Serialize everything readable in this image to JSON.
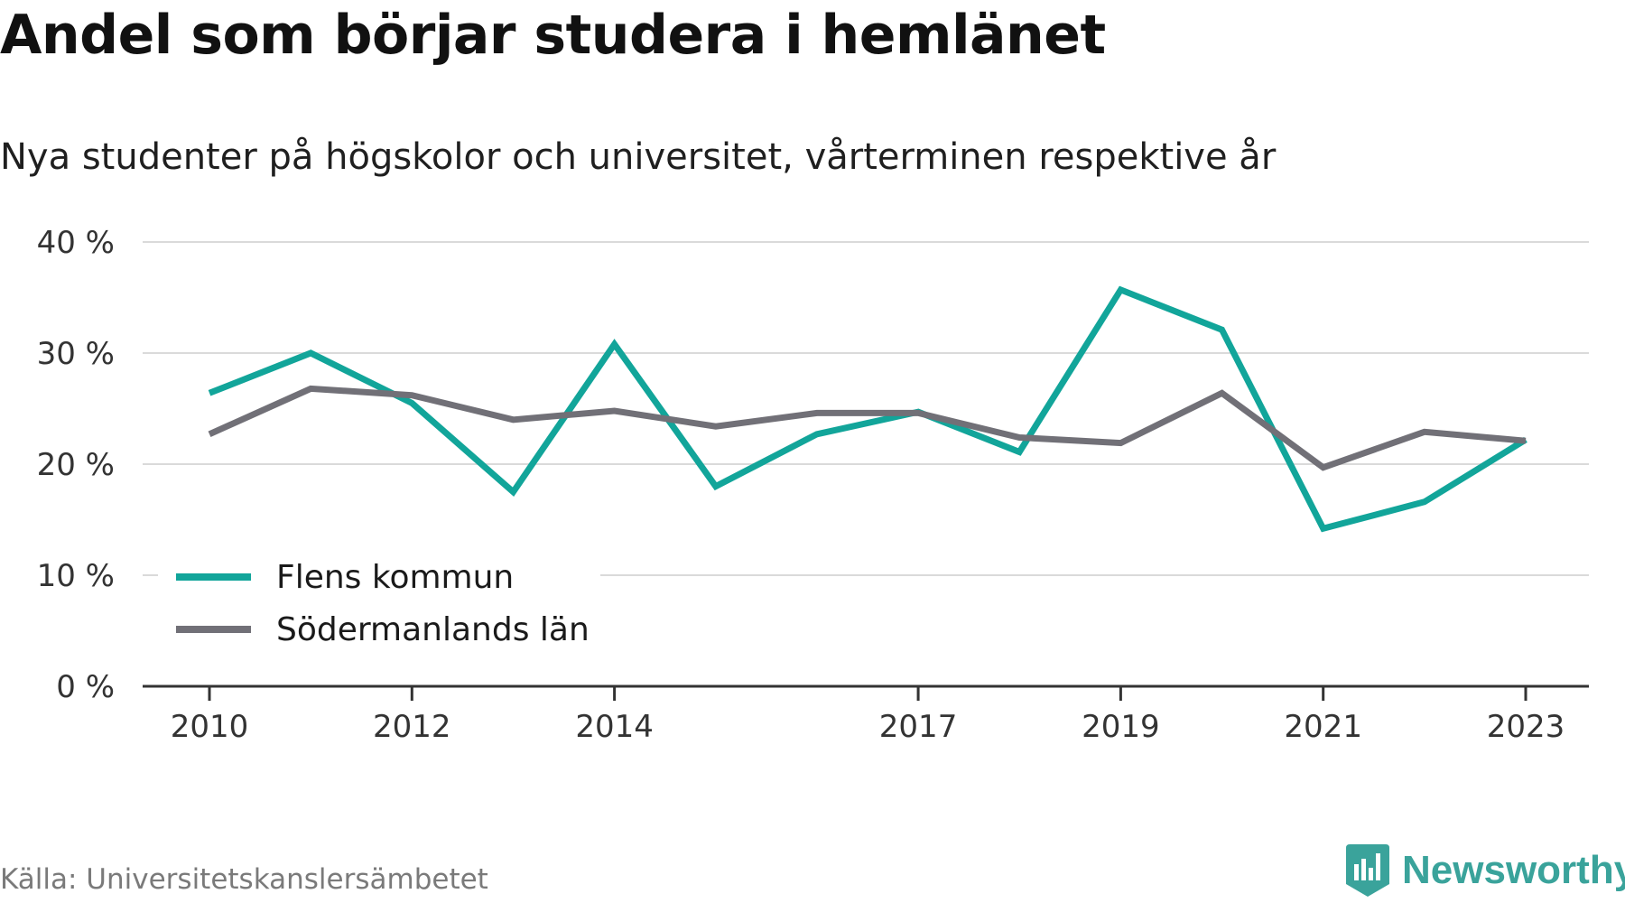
{
  "title": "Andel som börjar studera i hemlänet",
  "subtitle": "Nya studenter på högskolor och universitet, vårterminen respektive år",
  "source": "Källa: Universitetskanslersämbetet",
  "brand": {
    "name": "Newsworthy",
    "icon": "newsworthy-logo-icon",
    "color": "#3aa39b"
  },
  "chart_data": {
    "type": "line",
    "x": [
      2010,
      2011,
      2012,
      2013,
      2014,
      2015,
      2016,
      2017,
      2018,
      2019,
      2020,
      2021,
      2022,
      2023
    ],
    "x_tick_labels": [
      "2010",
      "2012",
      "2014",
      "2017",
      "2019",
      "2021",
      "2023"
    ],
    "y_tick_labels": [
      "0 %",
      "10 %",
      "20 %",
      "30 %",
      "40 %"
    ],
    "ylim": [
      0,
      40
    ],
    "grid": true,
    "legend_position": "bottom-left",
    "series": [
      {
        "name": "Flens kommun",
        "color": "#12a59a",
        "values": [
          26.4,
          30.0,
          25.5,
          17.5,
          30.8,
          18.0,
          22.7,
          24.7,
          21.1,
          35.7,
          32.1,
          14.2,
          16.6,
          22.2
        ]
      },
      {
        "name": "Södermanlands län",
        "color": "#717077",
        "values": [
          22.7,
          26.8,
          26.2,
          24.0,
          24.8,
          23.4,
          24.6,
          24.6,
          22.4,
          21.9,
          26.4,
          19.7,
          22.9,
          22.1
        ]
      }
    ]
  }
}
